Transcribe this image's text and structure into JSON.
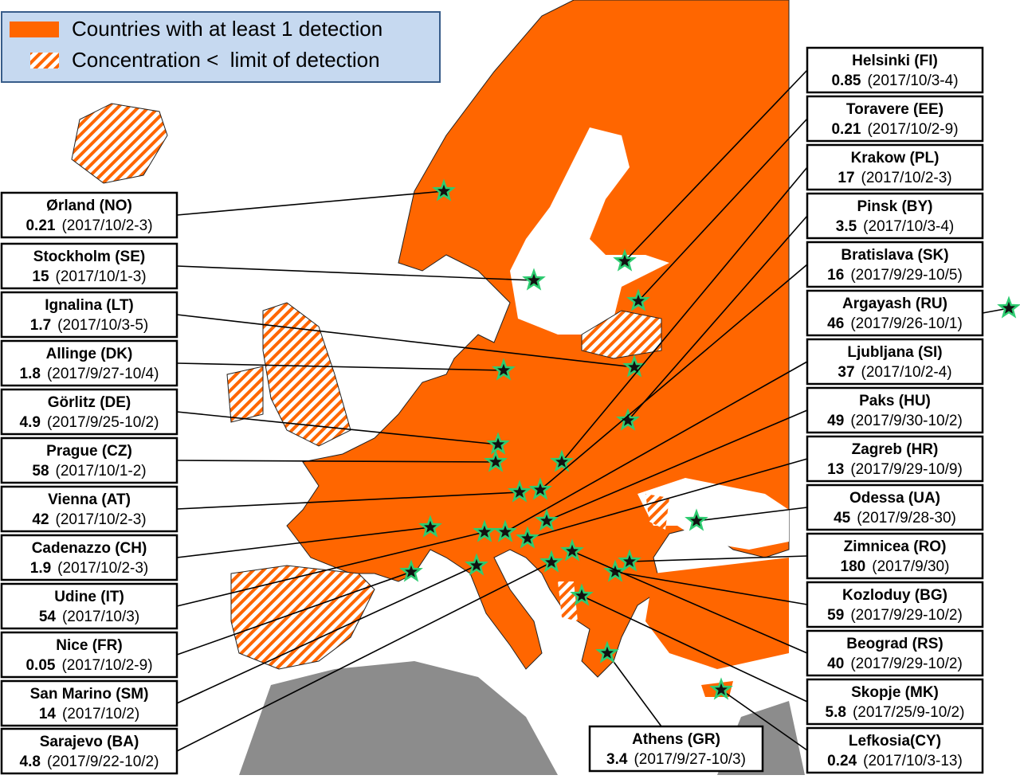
{
  "legend": [
    {
      "label": "Countries with at least 1 detection"
    },
    {
      "label": "Concentration <  limit of detection"
    }
  ],
  "stations": [
    {
      "name": "Ørland (NO)",
      "value": 0.21,
      "period": "(2017/10/2-3)"
    },
    {
      "name": "Stockholm (SE)",
      "value": 15,
      "period": "(2017/10/1-3)"
    },
    {
      "name": "Ignalina (LT)",
      "value": 1.7,
      "period": "(2017/10/3-5)"
    },
    {
      "name": "Allinge (DK)",
      "value": 1.8,
      "period": "(2017/9/27-10/4)"
    },
    {
      "name": "Görlitz (DE)",
      "value": 4.9,
      "period": "(2017/9/25-10/2)"
    },
    {
      "name": "Prague (CZ)",
      "value": 58,
      "period": "(2017/10/1-2)"
    },
    {
      "name": "Vienna (AT)",
      "value": 42,
      "period": "(2017/10/2-3)"
    },
    {
      "name": "Cadenazzo (CH)",
      "value": 1.9,
      "period": "(2017/10/2-3)"
    },
    {
      "name": "Udine (IT)",
      "value": 54,
      "period": "(2017/10/3)"
    },
    {
      "name": "Nice (FR)",
      "value": 0.05,
      "period": "(2017/10/2-9)"
    },
    {
      "name": "San Marino (SM)",
      "value": 14,
      "period": "(2017/10/2)"
    },
    {
      "name": "Sarajevo (BA)",
      "value": 4.8,
      "period": "(2017/9/22-10/2)"
    },
    {
      "name": "Helsinki (FI)",
      "value": 0.85,
      "period": "(2017/10/3-4)"
    },
    {
      "name": "Toravere (EE)",
      "value": 0.21,
      "period": "(2017/10/2-9)"
    },
    {
      "name": "Krakow (PL)",
      "value": 17,
      "period": "(2017/10/2-3)"
    },
    {
      "name": "Pinsk (BY)",
      "value": 3.5,
      "period": "(2017/10/3-4)"
    },
    {
      "name": "Bratislava (SK)",
      "value": 16,
      "period": "(2017/9/29-10/5)"
    },
    {
      "name": "Argayash (RU)",
      "value": 46,
      "period": "(2017/9/26-10/1)"
    },
    {
      "name": "Ljubljana (SI)",
      "value": 37,
      "period": "(2017/10/2-4)"
    },
    {
      "name": "Paks (HU)",
      "value": 49,
      "period": "(2017/9/30-10/2)"
    },
    {
      "name": "Zagreb (HR)",
      "value": 13,
      "period": "(2017/9/29-10/9)"
    },
    {
      "name": "Odessa (UA)",
      "value": 45,
      "period": "(2017/9/28-30)"
    },
    {
      "name": "Zimnicea (RO)",
      "value": 180,
      "period": "(2017/9/30)"
    },
    {
      "name": "Kozloduy (BG)",
      "value": 59,
      "period": "(2017/9/29-10/2)"
    },
    {
      "name": "Beograd (RS)",
      "value": 40,
      "period": "(2017/9/29-10/2)"
    },
    {
      "name": "Skopje (MK)",
      "value": 5.8,
      "period": "(2017/25/9-10/2)"
    },
    {
      "name": "Lefkosia(CY)",
      "value": 0.24,
      "period": "(2017/10/3-13)"
    },
    {
      "name": "Athens (GR)",
      "value": 3.4,
      "period": "(2017/9/27-10/3)"
    }
  ]
}
